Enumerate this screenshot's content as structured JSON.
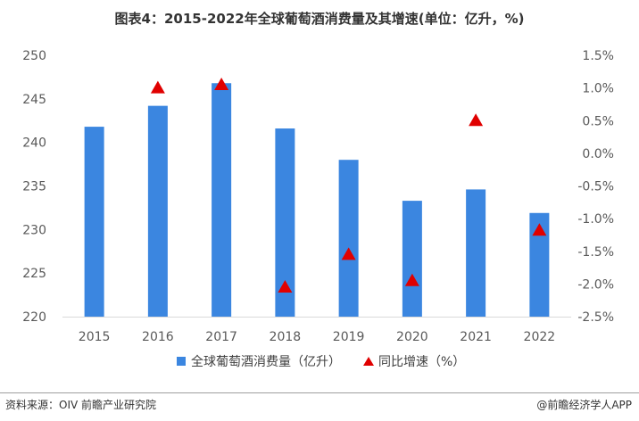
{
  "title": "图表4：2015-2022年全球葡萄酒消费量及其增速(单位：亿升，%)",
  "footer": {
    "source": "资料来源：OIV 前瞻产业研究院",
    "brand": "@前瞻经济学人APP"
  },
  "chart_data": {
    "type": "bar",
    "categories": [
      "2015",
      "2016",
      "2017",
      "2018",
      "2019",
      "2020",
      "2021",
      "2022"
    ],
    "series": [
      {
        "name": "全球葡萄酒消费量（亿升）",
        "type": "bar",
        "axis": "left",
        "color": "#3b86e0",
        "values": [
          241.8,
          244.2,
          246.8,
          241.6,
          238.0,
          233.3,
          234.6,
          231.9
        ]
      },
      {
        "name": "同比增速（%）",
        "type": "scatter",
        "marker": "triangle",
        "axis": "right",
        "color": "#e00000",
        "values": [
          null,
          1.0,
          1.05,
          -2.05,
          -1.55,
          -1.95,
          0.5,
          -1.18
        ]
      }
    ],
    "y_left": {
      "ylim": [
        220,
        250
      ],
      "ticks": [
        "220",
        "225",
        "230",
        "235",
        "240",
        "245",
        "250"
      ]
    },
    "y_right": {
      "ylim": [
        -2.5,
        1.5
      ],
      "ticks": [
        "-2.5%",
        "-2.0%",
        "-1.5%",
        "-1.0%",
        "-0.5%",
        "0.0%",
        "0.5%",
        "1.0%",
        "1.5%"
      ]
    },
    "grid": false,
    "legend": "bottom"
  }
}
